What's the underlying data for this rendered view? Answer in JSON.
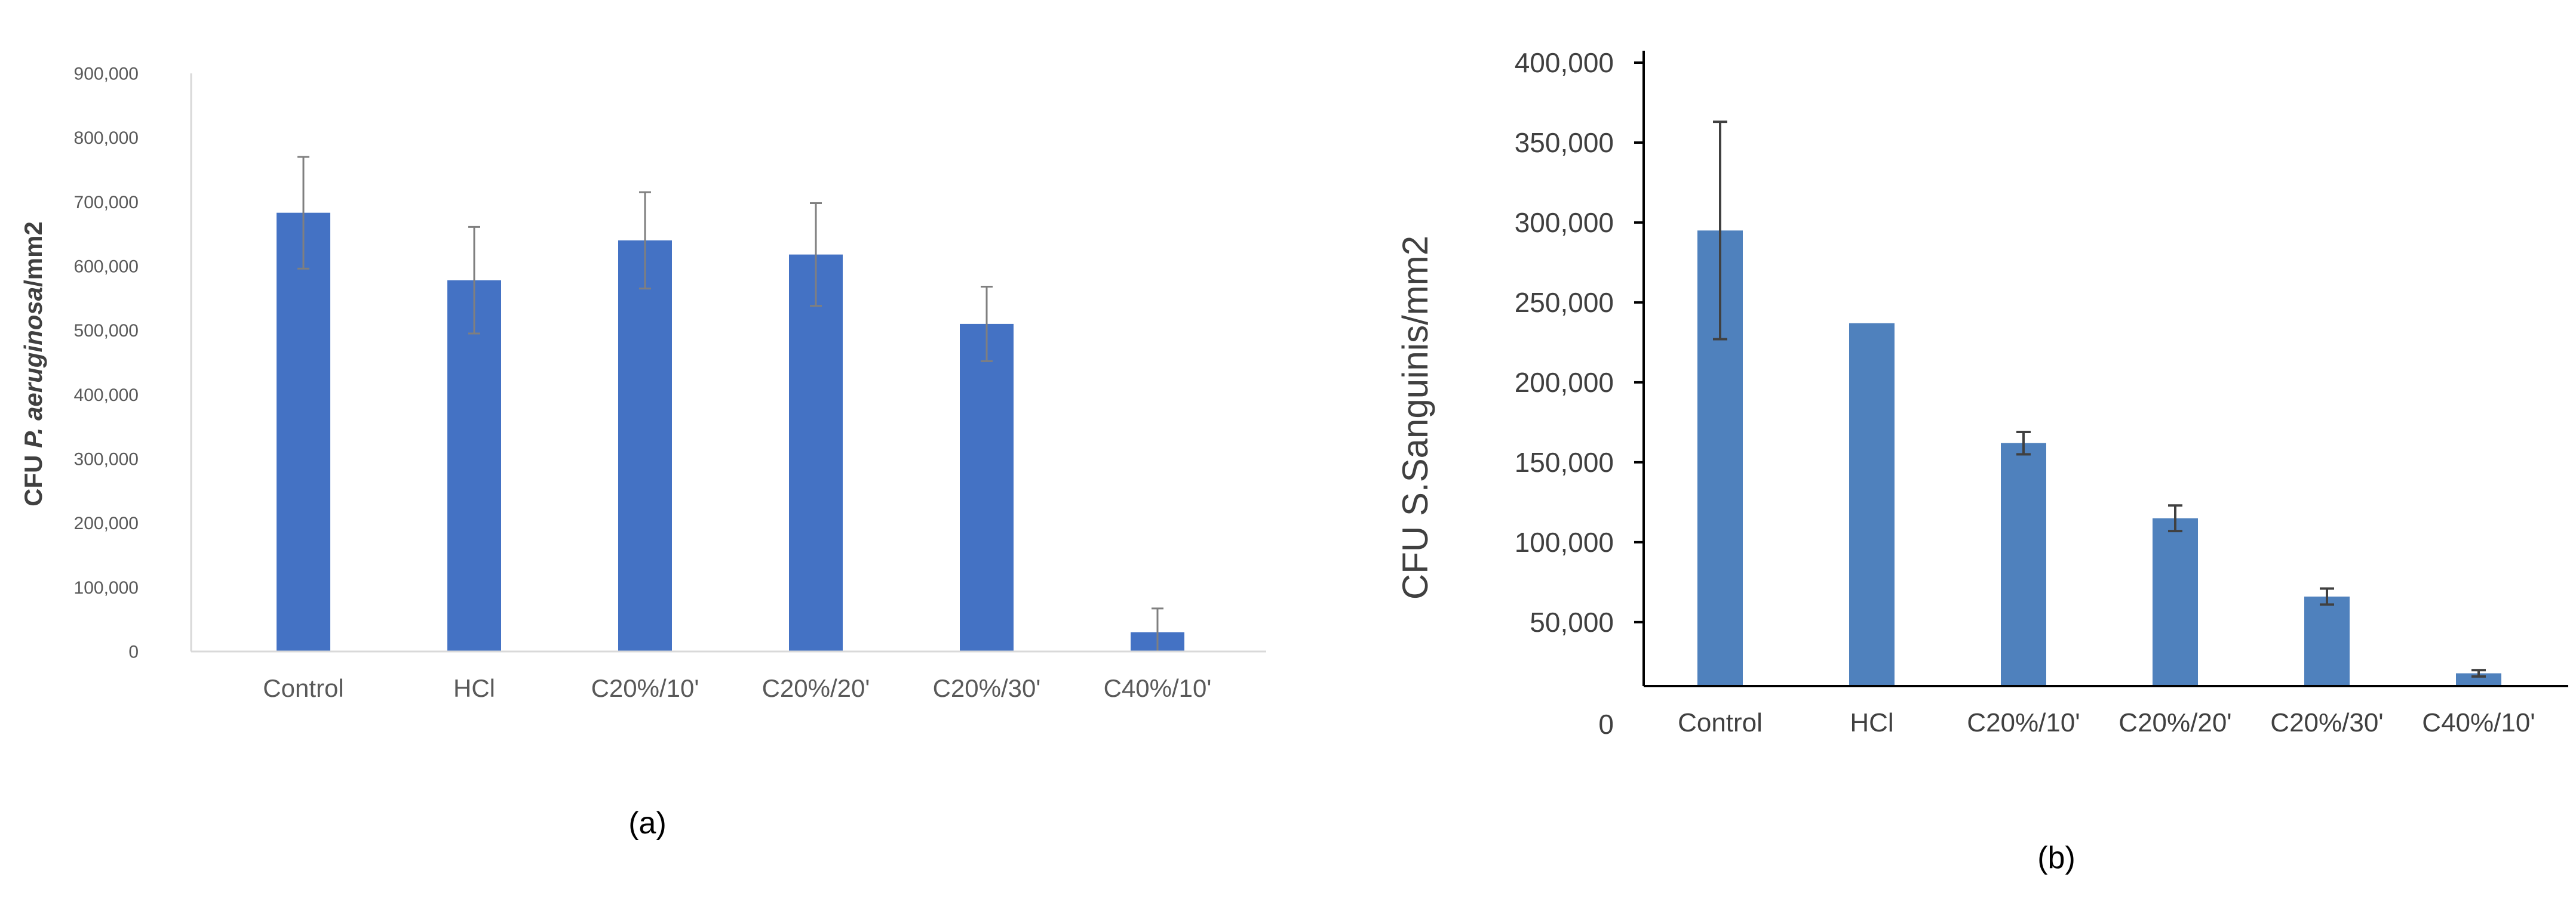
{
  "chart_data": [
    {
      "type": "bar",
      "panel_label": "(a)",
      "ylabel_prefix": "CFU ",
      "ylabel_italic": "P. aeruginosa",
      "ylabel_suffix": "/mm2",
      "categories": [
        "Control",
        "HCl",
        "C20%/10'",
        "C20%/20'",
        "C20%/30'",
        "C40%/10'"
      ],
      "values": [
        683000,
        578000,
        640000,
        618000,
        510000,
        30000
      ],
      "errors": [
        87000,
        83000,
        75000,
        80000,
        58000,
        37000
      ],
      "ylim": [
        0,
        900000
      ],
      "yticks": [
        "0",
        "100,000",
        "200,000",
        "300,000",
        "400,000",
        "500,000",
        "600,000",
        "700,000",
        "800,000",
        "900,000"
      ],
      "bar_color": "#4472C4",
      "grid": false
    },
    {
      "type": "bar",
      "panel_label": "(b)",
      "ylabel": "CFU S.Sanguinis/mm2",
      "categories": [
        "Control",
        "HCl",
        "C20%/10'",
        "C20%/20'",
        "C20%/30'",
        "C40%/10'"
      ],
      "values": [
        295000,
        237000,
        162000,
        115000,
        66000,
        18000
      ],
      "errors": [
        68000,
        0,
        7000,
        8000,
        5000,
        2000
      ],
      "ylim": [
        10000,
        400000
      ],
      "yticks": [
        "0",
        "50,000",
        "100,000",
        "150,000",
        "200,000",
        "250,000",
        "300,000",
        "350,000",
        "400,000"
      ],
      "bar_color": "#4F81BD",
      "grid": false
    }
  ]
}
